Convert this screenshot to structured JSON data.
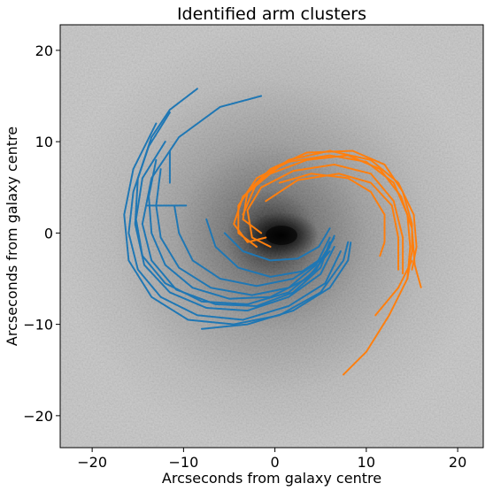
{
  "chart_data": {
    "type": "scatter",
    "title": "Identified arm clusters",
    "xlabel": "Arcseconds from galaxy centre",
    "ylabel": "Arcseconds from galaxy centre",
    "xlim": [
      -23.5,
      22.8
    ],
    "ylim": [
      -23.5,
      22.8
    ],
    "xticks": [
      -20,
      -10,
      0,
      10,
      20
    ],
    "yticks": [
      -20,
      -10,
      0,
      10,
      20
    ],
    "xtick_labels": [
      "−20",
      "−10",
      "0",
      "10",
      "20"
    ],
    "ytick_labels": [
      "−20",
      "−10",
      "0",
      "10",
      "20"
    ],
    "grid": false,
    "legend": "none",
    "background": "grayscale galaxy image with dark central bulge",
    "colors": {
      "arm_blue": "#1f77b4",
      "arm_orange": "#ff7f0e"
    },
    "series": [
      {
        "color": "#1f77b4",
        "traces": [
          [
            [
              -8.5,
              15.8
            ],
            [
              -11.5,
              13.5
            ],
            [
              -13.5,
              10.5
            ],
            [
              -15.0,
              6.0
            ],
            [
              -15.3,
              1.0
            ],
            [
              -14.3,
              -3.5
            ],
            [
              -11.5,
              -6.5
            ],
            [
              -7.5,
              -8.2
            ],
            [
              -3.0,
              -8.5
            ],
            [
              1.5,
              -7.0
            ],
            [
              5.0,
              -4.5
            ],
            [
              6.5,
              -1.5
            ]
          ],
          [
            [
              -1.5,
              15.0
            ],
            [
              -6.0,
              13.8
            ],
            [
              -10.5,
              10.5
            ],
            [
              -13.5,
              6.0
            ],
            [
              -14.5,
              1.0
            ],
            [
              -13.5,
              -3.0
            ],
            [
              -10.8,
              -6.2
            ],
            [
              -6.5,
              -7.8
            ],
            [
              -2.0,
              -8.0
            ],
            [
              2.0,
              -6.5
            ],
            [
              5.0,
              -3.8
            ],
            [
              6.0,
              -1.0
            ]
          ],
          [
            [
              -11.5,
              13.2
            ],
            [
              -13.8,
              9.5
            ],
            [
              -15.5,
              4.5
            ],
            [
              -16.0,
              0.0
            ],
            [
              -15.0,
              -4.0
            ],
            [
              -12.5,
              -7.0
            ],
            [
              -8.5,
              -9.0
            ],
            [
              -3.5,
              -9.5
            ],
            [
              1.5,
              -8.0
            ],
            [
              5.5,
              -5.5
            ],
            [
              7.2,
              -2.0
            ]
          ],
          [
            [
              -12.0,
              10.0
            ],
            [
              -14.5,
              6.0
            ],
            [
              -15.2,
              1.5
            ],
            [
              -14.5,
              -2.5
            ],
            [
              -12.0,
              -5.5
            ],
            [
              -8.0,
              -7.5
            ],
            [
              -3.0,
              -7.8
            ],
            [
              1.5,
              -6.5
            ],
            [
              4.5,
              -4.0
            ],
            [
              6.0,
              -1.5
            ]
          ],
          [
            [
              -13.0,
              12.0
            ],
            [
              -15.5,
              7.0
            ],
            [
              -16.5,
              2.0
            ],
            [
              -16.0,
              -3.0
            ],
            [
              -13.5,
              -7.0
            ],
            [
              -9.5,
              -9.5
            ],
            [
              -4.5,
              -10.0
            ],
            [
              0.5,
              -9.0
            ],
            [
              5.0,
              -6.5
            ],
            [
              7.5,
              -3.0
            ],
            [
              8.0,
              -1.0
            ]
          ],
          [
            [
              -13.0,
              8.0
            ],
            [
              -13.8,
              4.0
            ],
            [
              -13.5,
              0.0
            ],
            [
              -12.0,
              -3.5
            ],
            [
              -9.0,
              -6.0
            ],
            [
              -5.0,
              -7.2
            ],
            [
              -0.5,
              -7.0
            ],
            [
              3.5,
              -5.0
            ],
            [
              6.0,
              -2.0
            ]
          ],
          [
            [
              -12.5,
              7.0
            ],
            [
              -13.0,
              3.0
            ],
            [
              -12.5,
              -0.5
            ],
            [
              -10.5,
              -3.8
            ],
            [
              -7.0,
              -6.0
            ],
            [
              -2.5,
              -6.8
            ],
            [
              1.5,
              -6.0
            ],
            [
              4.5,
              -3.5
            ],
            [
              6.0,
              -0.5
            ]
          ],
          [
            [
              -8.0,
              -10.5
            ],
            [
              -3.0,
              -10.0
            ],
            [
              2.0,
              -8.5
            ],
            [
              6.0,
              -6.0
            ],
            [
              8.0,
              -3.0
            ],
            [
              8.3,
              -1.0
            ]
          ],
          [
            [
              -11.0,
              3.0
            ],
            [
              -10.5,
              0.0
            ],
            [
              -9.0,
              -3.0
            ],
            [
              -6.0,
              -5.0
            ],
            [
              -2.0,
              -5.8
            ],
            [
              2.0,
              -5.0
            ],
            [
              5.0,
              -3.0
            ],
            [
              6.5,
              -0.5
            ]
          ],
          [
            [
              -7.5,
              1.5
            ],
            [
              -6.5,
              -1.5
            ],
            [
              -4.0,
              -3.8
            ],
            [
              -0.5,
              -4.8
            ],
            [
              3.0,
              -4.2
            ],
            [
              5.5,
              -2.5
            ],
            [
              6.5,
              -0.3
            ]
          ],
          [
            [
              -5.5,
              0.0
            ],
            [
              -3.5,
              -2.0
            ],
            [
              -0.5,
              -3.0
            ],
            [
              2.5,
              -2.8
            ],
            [
              4.8,
              -1.5
            ],
            [
              6.0,
              0.5
            ]
          ],
          [
            [
              -14.0,
              3.0
            ],
            [
              -12.0,
              3.0
            ],
            [
              -9.7,
              3.0
            ]
          ],
          [
            [
              -11.5,
              9.0
            ],
            [
              -11.5,
              5.5
            ]
          ]
        ]
      },
      {
        "color": "#ff7f0e",
        "traces": [
          [
            [
              -1.0,
              -0.5
            ],
            [
              -3.0,
              -1.0
            ],
            [
              -4.5,
              1.0
            ],
            [
              -3.5,
              4.0
            ],
            [
              -0.5,
              6.5
            ],
            [
              3.5,
              8.0
            ],
            [
              8.0,
              8.5
            ],
            [
              11.5,
              7.0
            ],
            [
              13.8,
              4.0
            ],
            [
              15.0,
              0.5
            ],
            [
              15.3,
              -3.5
            ],
            [
              16.0,
              -6.0
            ]
          ],
          [
            [
              -1.5,
              0.0
            ],
            [
              -3.5,
              1.5
            ],
            [
              -3.0,
              4.5
            ],
            [
              -0.5,
              7.0
            ],
            [
              3.5,
              8.8
            ],
            [
              8.5,
              9.0
            ],
            [
              12.0,
              7.5
            ],
            [
              14.0,
              4.5
            ],
            [
              15.0,
              1.0
            ],
            [
              15.0,
              -2.0
            ]
          ],
          [
            [
              -2.0,
              -1.5
            ],
            [
              -4.0,
              0.0
            ],
            [
              -4.0,
              3.0
            ],
            [
              -2.0,
              6.0
            ],
            [
              1.5,
              7.8
            ],
            [
              6.0,
              8.5
            ],
            [
              10.0,
              7.8
            ],
            [
              13.0,
              5.5
            ],
            [
              14.5,
              2.0
            ],
            [
              14.8,
              -1.5
            ],
            [
              14.5,
              -5.0
            ]
          ],
          [
            [
              -0.5,
              -1.5
            ],
            [
              -2.5,
              -0.5
            ],
            [
              -3.0,
              2.5
            ],
            [
              -1.5,
              5.0
            ],
            [
              2.0,
              6.8
            ],
            [
              6.5,
              7.5
            ],
            [
              10.5,
              6.5
            ],
            [
              13.0,
              3.5
            ],
            [
              14.0,
              -0.5
            ],
            [
              14.0,
              -4.5
            ]
          ],
          [
            [
              -3.5,
              2.0
            ],
            [
              -2.0,
              5.5
            ],
            [
              1.5,
              8.0
            ],
            [
              6.0,
              9.0
            ],
            [
              10.5,
              8.0
            ],
            [
              13.5,
              5.5
            ],
            [
              15.2,
              2.0
            ],
            [
              15.5,
              -1.5
            ],
            [
              15.0,
              -4.0
            ]
          ],
          [
            [
              0.5,
              5.5
            ],
            [
              4.0,
              6.5
            ],
            [
              8.0,
              6.0
            ],
            [
              10.5,
              4.5
            ],
            [
              12.0,
              2.0
            ],
            [
              12.0,
              -1.0
            ],
            [
              11.5,
              -2.5
            ]
          ],
          [
            [
              -1.0,
              3.5
            ],
            [
              2.5,
              5.8
            ],
            [
              7.0,
              6.5
            ],
            [
              10.5,
              5.5
            ],
            [
              12.8,
              3.0
            ],
            [
              13.5,
              -0.5
            ],
            [
              13.5,
              -4.0
            ]
          ],
          [
            [
              7.5,
              -15.5
            ],
            [
              10.0,
              -13.0
            ],
            [
              12.5,
              -9.0
            ],
            [
              14.5,
              -5.0
            ],
            [
              15.0,
              -2.0
            ]
          ],
          [
            [
              11.0,
              -9.0
            ],
            [
              13.5,
              -6.0
            ],
            [
              15.0,
              -3.0
            ]
          ]
        ]
      }
    ]
  }
}
